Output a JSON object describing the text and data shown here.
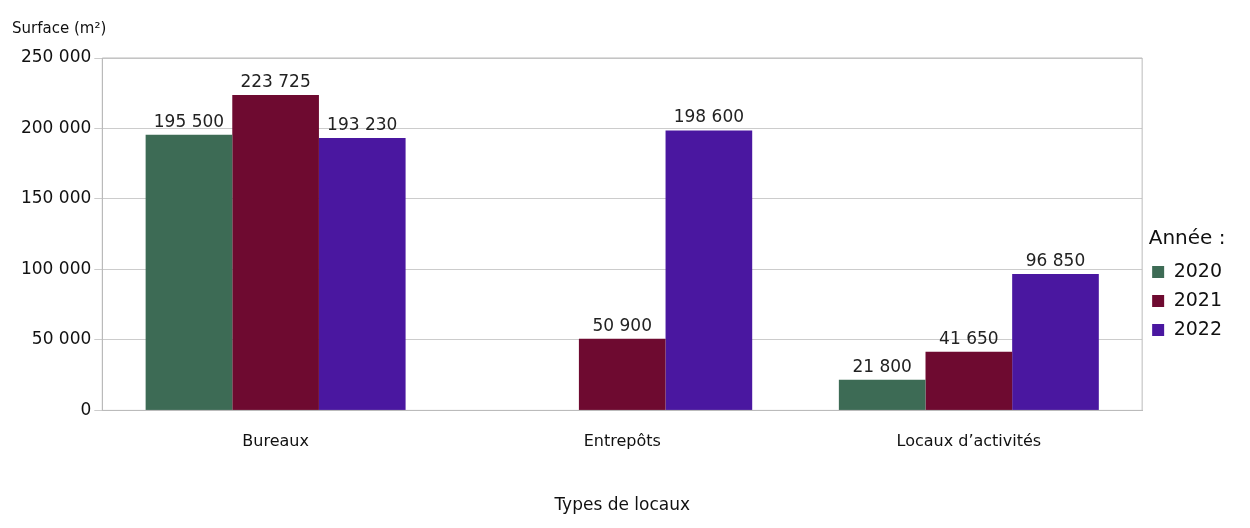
{
  "chart_data": {
    "type": "bar",
    "xlabel": "Types de locaux",
    "ylabel": "Surface (m²)",
    "legend_title": "Année :",
    "legend": "right",
    "grid": "y",
    "categories": [
      "Bureaux",
      "Entrepôts",
      "Locaux d’activités"
    ],
    "ylim": [
      0,
      250000
    ],
    "yticks": [
      0,
      {
        "value": 50000,
        "label": "50 000"
      },
      {
        "value": 100000,
        "label": "100 000"
      },
      {
        "value": 150000,
        "label": "150 000"
      },
      {
        "value": 200000,
        "label": "200 000"
      },
      {
        "value": 250000,
        "label": "250 000"
      }
    ],
    "series": [
      {
        "name": "2020",
        "color": "#3d6b55",
        "values": [
          195500,
          null,
          21800
        ],
        "value_labels": [
          "195 500",
          null,
          "21 800"
        ]
      },
      {
        "name": "2021",
        "color": "#6e0a30",
        "values": [
          223725,
          50900,
          41650
        ],
        "value_labels": [
          "223 725",
          "50 900",
          "41 650"
        ]
      },
      {
        "name": "2022",
        "color": "#4a17a0",
        "values": [
          193230,
          198600,
          96850
        ],
        "value_labels": [
          "193 230",
          "198 600",
          "96 850"
        ]
      }
    ]
  }
}
